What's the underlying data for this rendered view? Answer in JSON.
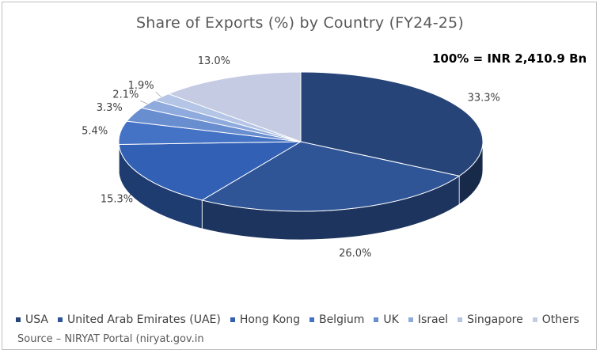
{
  "chart_data": {
    "type": "pie",
    "title": "Share of Exports (%)  by Country (FY24-25)",
    "total_note": "100% = INR 2,410.9 Bn",
    "legend_position": "bottom",
    "slices": [
      {
        "name": "USA",
        "value": 33.3,
        "label": "33.3%",
        "color": "#264478"
      },
      {
        "name": "United Arab Emirates (UAE)",
        "value": 26.0,
        "label": "26.0%",
        "color": "#2f5597"
      },
      {
        "name": "Hong Kong",
        "value": 15.3,
        "label": "15.3%",
        "color": "#3260b4"
      },
      {
        "name": "Belgium",
        "value": 5.4,
        "label": "5.4%",
        "color": "#4472c4"
      },
      {
        "name": "UK",
        "value": 3.3,
        "label": "3.3%",
        "color": "#698ed0"
      },
      {
        "name": "Israel",
        "value": 2.1,
        "label": "2.1%",
        "color": "#8faadc"
      },
      {
        "name": "Singapore",
        "value": 1.9,
        "label": "1.9%",
        "color": "#b4c5e6"
      },
      {
        "name": "Others",
        "value": 13.0,
        "label": "13.0%",
        "color": "#c5cbe3"
      }
    ]
  },
  "source": "Source – NIRYAT Portal (niryat.gov.in"
}
